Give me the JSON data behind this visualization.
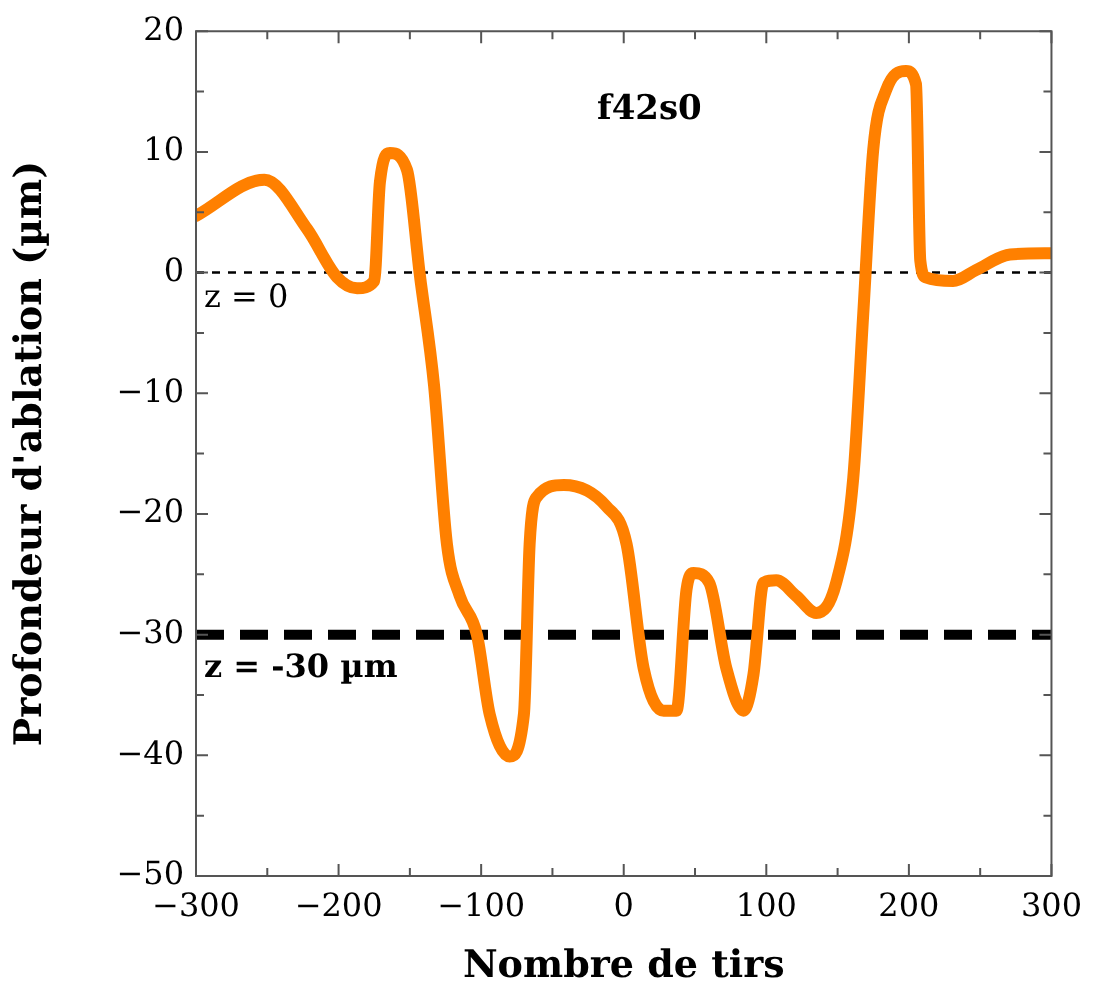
{
  "chart_data": {
    "type": "line",
    "xlabel": "Nombre de tirs",
    "ylabel": "Profondeur d'ablation (µm)",
    "annotations": [
      "f42s0"
    ],
    "xlim": [
      -300,
      300
    ],
    "xticks": [
      -300,
      -200,
      -100,
      0,
      100,
      200,
      300
    ],
    "ylim": [
      -50,
      20
    ],
    "yticks": [
      -50,
      -40,
      -30,
      -20,
      -10,
      0,
      10,
      20
    ],
    "grid": false,
    "legend": false,
    "marker": "none",
    "line_style": "solid",
    "ref_lines": [
      {
        "axis": "y",
        "value": 0,
        "label": "z = 0",
        "color": "#000000",
        "line_style": "dotted"
      },
      {
        "axis": "y",
        "value": -30,
        "label": "z = -30 µm",
        "color": "#000000",
        "line_style": "dashed"
      }
    ],
    "series": [
      {
        "color": "#ff8000",
        "x": [
          -300,
          -252,
          -222,
          -201,
          -187,
          -175,
          -171,
          -164,
          -152,
          -143,
          -133,
          -124,
          -115,
          -103,
          -94,
          -80,
          -70,
          -66,
          -61,
          -42,
          -12,
          2,
          14,
          28,
          37,
          44,
          49,
          60,
          72,
          84,
          91,
          98,
          107,
          121,
          135,
          149,
          161,
          168,
          175,
          184,
          198,
          205,
          208,
          212,
          231,
          247,
          271,
          300
        ],
        "values": [
          4.7,
          7.7,
          3.6,
          -0.4,
          -1.3,
          -0.7,
          7.5,
          9.9,
          8.5,
          -0.2,
          -9.4,
          -22.5,
          -26.8,
          -30,
          -36.6,
          -40.1,
          -36.6,
          -22.5,
          -18.6,
          -17.6,
          -19.4,
          -22.5,
          -32.8,
          -36.3,
          -36.3,
          -26.3,
          -24.9,
          -25.7,
          -32.8,
          -36.3,
          -33.3,
          -25.7,
          -25.5,
          -26.8,
          -28.2,
          -25.7,
          -17,
          -3.4,
          10.2,
          15.1,
          16.7,
          15.6,
          1,
          -0.4,
          -0.7,
          0.2,
          1.5,
          1.6
        ]
      }
    ]
  }
}
